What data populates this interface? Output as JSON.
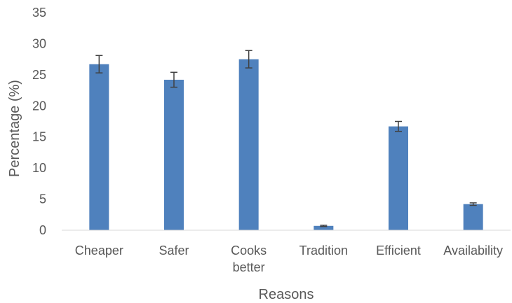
{
  "chart_data": {
    "type": "bar",
    "title": "",
    "xlabel": "Reasons",
    "ylabel": "Percentage (%)",
    "categories": [
      [
        "Cheaper"
      ],
      [
        "Safer"
      ],
      [
        "Cooks",
        "better"
      ],
      [
        "Tradition"
      ],
      [
        "Efficient"
      ],
      [
        "Availability"
      ]
    ],
    "values": [
      26.7,
      24.2,
      27.5,
      0.7,
      16.7,
      4.2
    ],
    "error": [
      1.4,
      1.2,
      1.4,
      0.1,
      0.8,
      0.2
    ],
    "ylim": [
      0,
      35
    ],
    "yticks": [
      0,
      5,
      10,
      15,
      20,
      25,
      30,
      35
    ],
    "grid": false,
    "legend": "none",
    "bar_color": "#4F81BD",
    "error_color": "#404040"
  }
}
